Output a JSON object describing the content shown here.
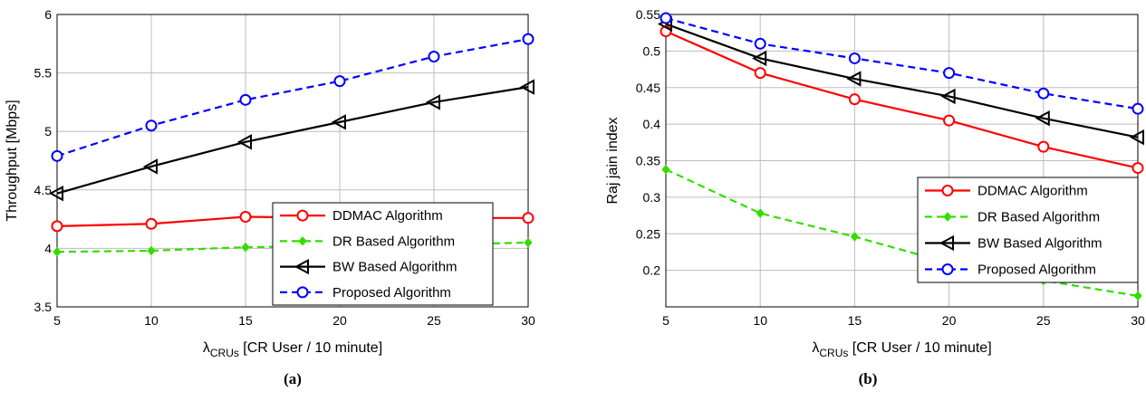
{
  "colors": {
    "ddmac": "#ff0000",
    "dr": "#33dd00",
    "bw": "#000000",
    "proposed": "#0000ff"
  },
  "chart_data": [
    {
      "type": "line",
      "panel_label": "(a)",
      "xlabel_main": "λ",
      "xlabel_sub": "CRUs",
      "xlabel_rest": " [CR User / 10 minute]",
      "ylabel": "Throughput [Mbps]",
      "x": [
        5,
        10,
        15,
        20,
        25,
        30
      ],
      "xticks": [
        "5",
        "10",
        "15",
        "20",
        "25",
        "30"
      ],
      "ylim": [
        3.5,
        6
      ],
      "yticks": [
        "3.5",
        "4",
        "4.5",
        "5",
        "5.5",
        "6"
      ],
      "grid": true,
      "legend_position": "bottom-right",
      "series": [
        {
          "name": "DDMAC Algorithm",
          "color": "#ff0000",
          "style": "solid",
          "marker": "circle",
          "values": [
            4.19,
            4.21,
            4.27,
            4.26,
            4.26,
            4.26
          ]
        },
        {
          "name": "DR Based Algorithm",
          "color": "#33dd00",
          "style": "dashed",
          "marker": "diamond",
          "values": [
            3.97,
            3.98,
            4.01,
            4.02,
            4.03,
            4.05
          ]
        },
        {
          "name": "BW Based Algorithm",
          "color": "#000000",
          "style": "solid",
          "marker": "triangle-left",
          "values": [
            4.47,
            4.7,
            4.91,
            5.08,
            5.25,
            5.38
          ]
        },
        {
          "name": "Proposed Algorithm",
          "color": "#0000ff",
          "style": "dashed",
          "marker": "circle",
          "values": [
            4.79,
            5.05,
            5.27,
            5.43,
            5.64,
            5.79
          ]
        }
      ]
    },
    {
      "type": "line",
      "panel_label": "(b)",
      "xlabel_main": "λ",
      "xlabel_sub": "CRUs",
      "xlabel_rest": " [CR User / 10 minute]",
      "ylabel": "Raj jain index",
      "x": [
        5,
        10,
        15,
        20,
        25,
        30
      ],
      "xticks": [
        "5",
        "10",
        "15",
        "20",
        "25",
        "30"
      ],
      "ylim": [
        0.15,
        0.55
      ],
      "yticks": [
        "0.2",
        "0.25",
        "0.3",
        "0.35",
        "0.4",
        "0.45",
        "0.5",
        "0.55"
      ],
      "grid": true,
      "legend_position": "bottom-right",
      "series": [
        {
          "name": "DDMAC Algorithm",
          "color": "#ff0000",
          "style": "solid",
          "marker": "circle",
          "values": [
            0.527,
            0.47,
            0.434,
            0.405,
            0.369,
            0.34
          ]
        },
        {
          "name": "DR Based Algorithm",
          "color": "#33dd00",
          "style": "dashed",
          "marker": "diamond",
          "values": [
            0.338,
            0.278,
            0.246,
            0.21,
            0.186,
            0.165
          ]
        },
        {
          "name": "BW Based Algorithm",
          "color": "#000000",
          "style": "solid",
          "marker": "triangle-left",
          "values": [
            0.537,
            0.49,
            0.462,
            0.438,
            0.408,
            0.382
          ]
        },
        {
          "name": "Proposed Algorithm",
          "color": "#0000ff",
          "style": "dashed",
          "marker": "circle",
          "values": [
            0.545,
            0.51,
            0.49,
            0.47,
            0.442,
            0.421
          ]
        }
      ]
    }
  ]
}
